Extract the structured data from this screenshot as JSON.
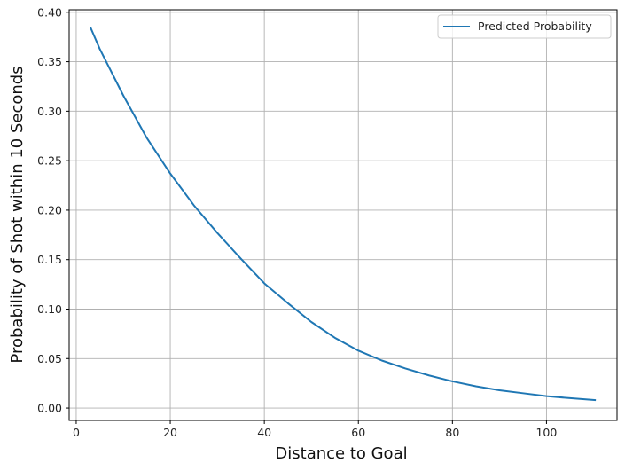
{
  "chart_data": {
    "type": "line",
    "title": "",
    "xlabel": "Distance to Goal",
    "ylabel": "Probability of Shot within 10 Seconds",
    "xlim": [
      -1.5,
      115
    ],
    "ylim": [
      -0.0125,
      0.4025
    ],
    "x_ticks": [
      0,
      20,
      40,
      60,
      80,
      100
    ],
    "y_ticks": [
      0.0,
      0.05,
      0.1,
      0.15,
      0.2,
      0.25,
      0.3,
      0.35,
      0.4
    ],
    "x_tick_labels": [
      "0",
      "20",
      "40",
      "60",
      "80",
      "100"
    ],
    "y_tick_labels": [
      "0.00",
      "0.05",
      "0.10",
      "0.15",
      "0.20",
      "0.25",
      "0.30",
      "0.35",
      "0.40"
    ],
    "grid": true,
    "legend_position": "top-right",
    "series": [
      {
        "name": "Predicted Probability",
        "color": "#1f77b4",
        "x": [
          3,
          5,
          10,
          15,
          20,
          25,
          30,
          35,
          40,
          45,
          50,
          55,
          60,
          65,
          70,
          75,
          80,
          85,
          90,
          95,
          100,
          105,
          110.5
        ],
        "y": [
          0.385,
          0.363,
          0.316,
          0.273,
          0.237,
          0.205,
          0.177,
          0.151,
          0.126,
          0.106,
          0.087,
          0.071,
          0.058,
          0.048,
          0.04,
          0.033,
          0.027,
          0.022,
          0.018,
          0.015,
          0.012,
          0.01,
          0.008
        ]
      }
    ]
  }
}
